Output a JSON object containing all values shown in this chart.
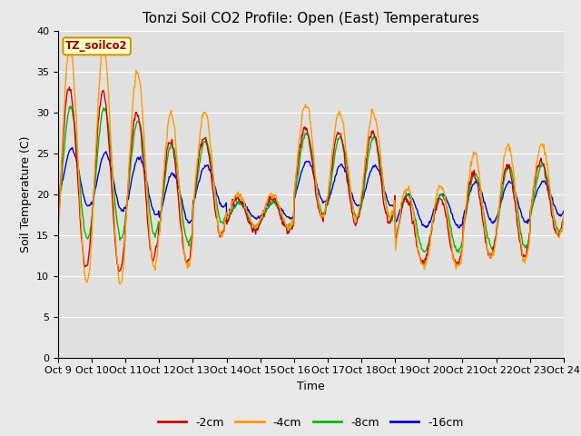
{
  "title": "Tonzi Soil CO2 Profile: Open (East) Temperatures",
  "xlabel": "Time",
  "ylabel": "Soil Temperature (C)",
  "ylim": [
    0,
    40
  ],
  "yticks": [
    0,
    5,
    10,
    15,
    20,
    25,
    30,
    35,
    40
  ],
  "fig_bg_color": "#e8e8e8",
  "plot_bg_color": "#e0e0e0",
  "legend_label": "TZ_soilco2",
  "series_labels": [
    "-2cm",
    "-4cm",
    "-8cm",
    "-16cm"
  ],
  "series_colors": [
    "#cc0000",
    "#ff9900",
    "#00bb00",
    "#0000cc"
  ],
  "x_tick_labels": [
    "Oct 9",
    "Oct 10",
    "Oct 11",
    "Oct 12",
    "Oct 13",
    "Oct 14",
    "Oct 15",
    "Oct 16",
    "Oct 17",
    "Oct 18",
    "Oct 19",
    "Oct 20",
    "Oct 21",
    "Oct 22",
    "Oct 23",
    "Oct 24"
  ],
  "title_fontsize": 11,
  "tick_fontsize": 8,
  "axis_label_fontsize": 9
}
